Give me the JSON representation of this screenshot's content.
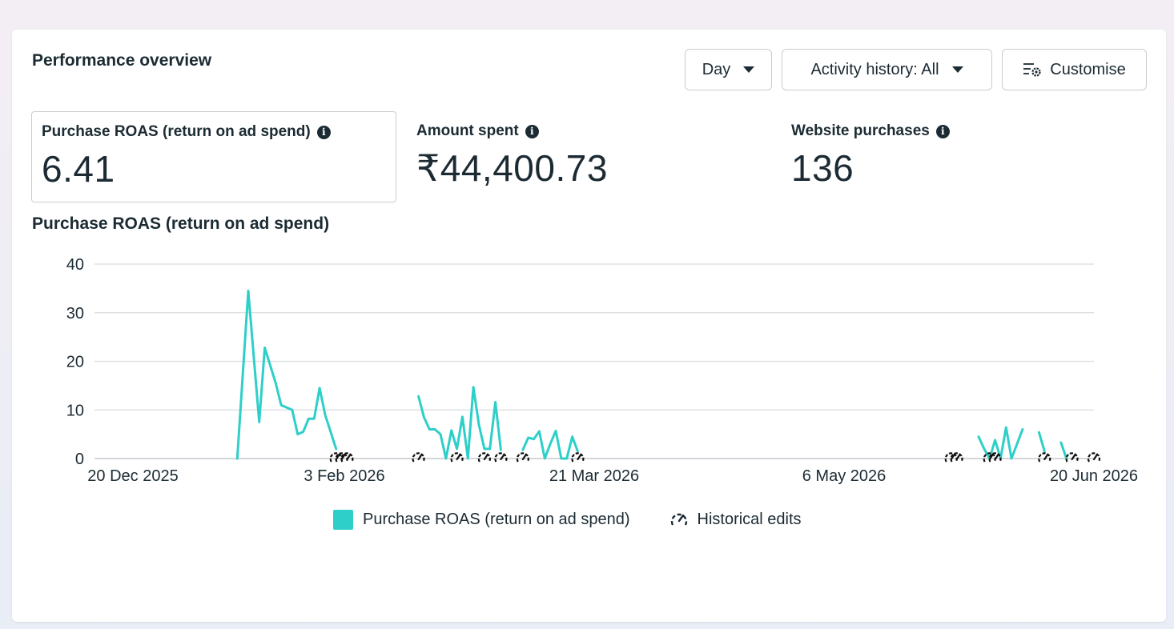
{
  "header": {
    "title": "Performance overview",
    "day_button": "Day",
    "activity_button": "Activity history: All",
    "customise_button": "Customise"
  },
  "metrics": [
    {
      "label": "Purchase ROAS (return on ad spend)",
      "value": "6.41",
      "icon": "info-icon"
    },
    {
      "label": "Amount spent",
      "value": "₹44,400.73",
      "icon": "info-icon"
    },
    {
      "label": "Website purchases",
      "value": "136",
      "icon": "info-icon"
    }
  ],
  "chart_title": "Purchase ROAS (return on ad spend)",
  "legend": {
    "series_label": "Purchase ROAS (return on ad spend)",
    "edits_label": "Historical edits"
  },
  "colors": {
    "series": "#2ecfc9",
    "text": "#1c2b33",
    "grid": "#d9dce0"
  },
  "chart_data": {
    "type": "line",
    "title": "Purchase ROAS (return on ad spend)",
    "y_ticks": [
      0,
      10,
      20,
      30,
      40
    ],
    "x_ticks": [
      "20 Dec 2025",
      "3 Feb 2026",
      "21 Mar 2026",
      "6 May 2026",
      "20 Jun 2026"
    ],
    "ylim": [
      0,
      40
    ],
    "xlim": [
      "2025-12-20",
      "2026-06-20"
    ],
    "series": [
      {
        "name": "Purchase ROAS (return on ad spend)",
        "segments": [
          [
            [
              "2026-01-15",
              0
            ],
            [
              "2026-01-17",
              34.5
            ],
            [
              "2026-01-19",
              7.5
            ],
            [
              "2026-01-20",
              22.8
            ],
            [
              "2026-01-22",
              15.5
            ],
            [
              "2026-01-23",
              11
            ],
            [
              "2026-01-25",
              10
            ],
            [
              "2026-01-26",
              5
            ],
            [
              "2026-01-27",
              5.5
            ],
            [
              "2026-01-28",
              8.2
            ],
            [
              "2026-01-29",
              8.2
            ],
            [
              "2026-01-30",
              14.5
            ],
            [
              "2026-01-31",
              9
            ],
            [
              "2026-02-02",
              2
            ]
          ],
          [
            [
              "2026-02-17",
              12.8
            ],
            [
              "2026-02-18",
              8.5
            ],
            [
              "2026-02-19",
              6
            ],
            [
              "2026-02-20",
              6
            ],
            [
              "2026-02-21",
              5
            ],
            [
              "2026-02-22",
              0
            ],
            [
              "2026-02-23",
              5.8
            ],
            [
              "2026-02-24",
              2
            ],
            [
              "2026-02-25",
              8.6
            ],
            [
              "2026-02-26",
              0
            ],
            [
              "2026-02-27",
              14.7
            ],
            [
              "2026-02-28",
              7
            ],
            [
              "2026-03-01",
              2
            ],
            [
              "2026-03-02",
              2
            ],
            [
              "2026-03-03",
              11.6
            ],
            [
              "2026-03-04",
              1.8
            ]
          ],
          [
            [
              "2026-03-08",
              1.8
            ],
            [
              "2026-03-09",
              4.3
            ],
            [
              "2026-03-10",
              4
            ],
            [
              "2026-03-11",
              5.6
            ],
            [
              "2026-03-12",
              0
            ],
            [
              "2026-03-13",
              3
            ],
            [
              "2026-03-14",
              5.7
            ],
            [
              "2026-03-15",
              0
            ],
            [
              "2026-03-16",
              0
            ],
            [
              "2026-03-17",
              4.5
            ],
            [
              "2026-03-18",
              1.5
            ]
          ],
          [
            [
              "2026-05-30",
              4.5
            ],
            [
              "2026-05-31",
              2
            ],
            [
              "2026-06-01",
              0
            ],
            [
              "2026-06-02",
              3.8
            ],
            [
              "2026-06-03",
              0
            ],
            [
              "2026-06-04",
              6.4
            ],
            [
              "2026-06-05",
              0
            ],
            [
              "2026-06-07",
              6
            ]
          ],
          [
            [
              "2026-06-10",
              5.4
            ],
            [
              "2026-06-11",
              1.5
            ]
          ],
          [
            [
              "2026-06-14",
              3.3
            ],
            [
              "2026-06-15",
              0
            ]
          ]
        ]
      }
    ],
    "historical_edits": [
      "2026-02-02",
      "2026-02-03",
      "2026-02-04",
      "2026-02-17",
      "2026-02-24",
      "2026-03-01",
      "2026-03-04",
      "2026-03-08",
      "2026-03-18",
      "2026-05-25",
      "2026-05-26",
      "2026-06-01",
      "2026-06-02",
      "2026-06-11",
      "2026-06-16",
      "2026-06-20"
    ]
  }
}
